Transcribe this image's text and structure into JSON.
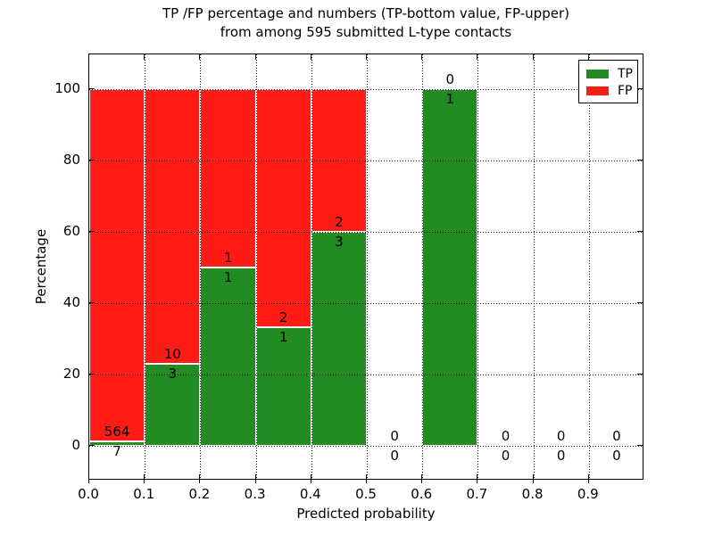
{
  "chart_data": {
    "type": "bar",
    "stacked": true,
    "title_line1": "TP /FP percentage and numbers (TP-bottom value, FP-upper)",
    "title_line2": "from among 595 submitted L-type contacts",
    "xlabel": "Predicted probability",
    "ylabel": "Percentage",
    "x_ticks": [
      "0.0",
      "0.1",
      "0.2",
      "0.3",
      "0.4",
      "0.5",
      "0.6",
      "0.7",
      "0.8",
      "0.9"
    ],
    "y_ticks": [
      0,
      20,
      40,
      60,
      80,
      100
    ],
    "xlim": [
      0.0,
      1.0
    ],
    "ylim_pct": [
      -9.75,
      109.75
    ],
    "bin_width": 0.1,
    "grid": "dotted",
    "colors": {
      "tp": "#228b22",
      "fp": "#ff1c14"
    },
    "legend": {
      "position": "upper right",
      "entries": [
        {
          "label": "TP",
          "color": "#228b22"
        },
        {
          "label": "FP",
          "color": "#ff1c14"
        }
      ]
    },
    "bins": [
      {
        "x_start": 0.0,
        "x_end": 0.1,
        "tp": 7,
        "fp": 564,
        "tp_pct": 1.23,
        "total_pct": 100
      },
      {
        "x_start": 0.1,
        "x_end": 0.2,
        "tp": 3,
        "fp": 10,
        "tp_pct": 23.08,
        "total_pct": 100
      },
      {
        "x_start": 0.2,
        "x_end": 0.3,
        "tp": 1,
        "fp": 1,
        "tp_pct": 50,
        "total_pct": 100
      },
      {
        "x_start": 0.3,
        "x_end": 0.4,
        "tp": 1,
        "fp": 2,
        "tp_pct": 33.33,
        "total_pct": 100
      },
      {
        "x_start": 0.4,
        "x_end": 0.5,
        "tp": 3,
        "fp": 2,
        "tp_pct": 60,
        "total_pct": 100
      },
      {
        "x_start": 0.5,
        "x_end": 0.6,
        "tp": 0,
        "fp": 0,
        "tp_pct": 0,
        "total_pct": 0
      },
      {
        "x_start": 0.6,
        "x_end": 0.7,
        "tp": 1,
        "fp": 0,
        "tp_pct": 100,
        "total_pct": 100
      },
      {
        "x_start": 0.7,
        "x_end": 0.8,
        "tp": 0,
        "fp": 0,
        "tp_pct": 0,
        "total_pct": 0
      },
      {
        "x_start": 0.8,
        "x_end": 0.9,
        "tp": 0,
        "fp": 0,
        "tp_pct": 0,
        "total_pct": 0
      },
      {
        "x_start": 0.9,
        "x_end": 1.0,
        "tp": 0,
        "fp": 0,
        "tp_pct": 0,
        "total_pct": 0
      }
    ]
  }
}
